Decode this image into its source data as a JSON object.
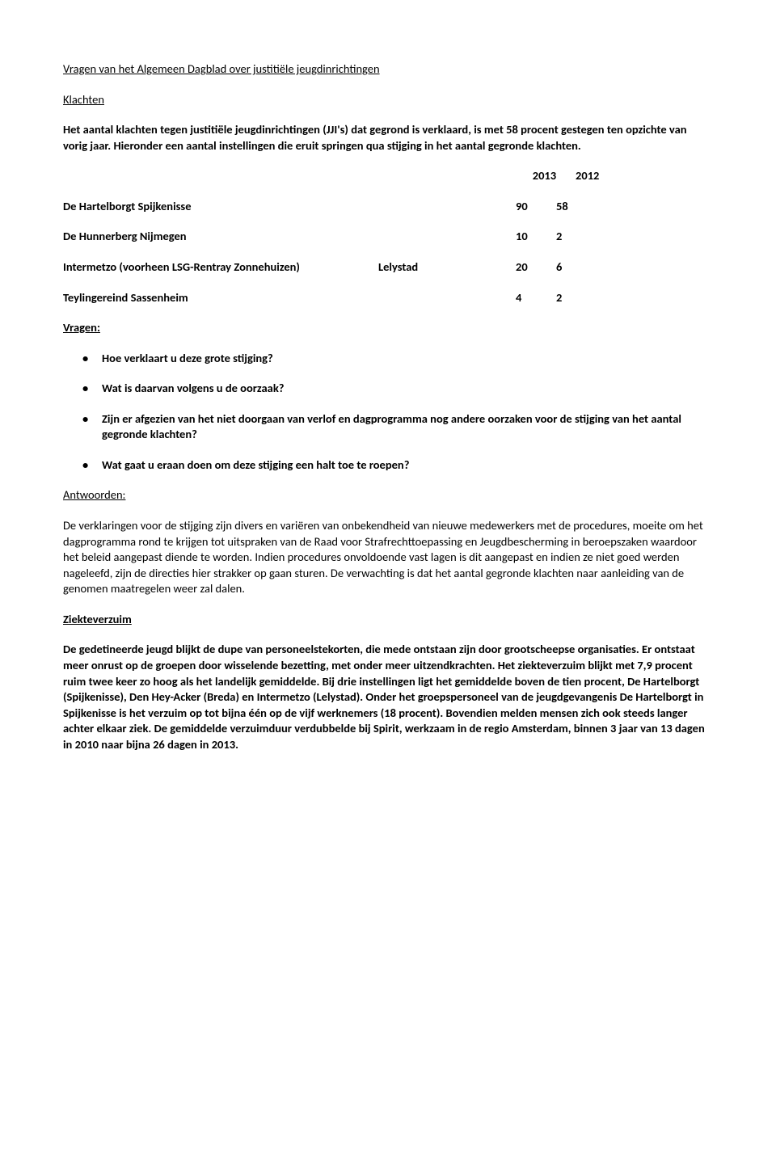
{
  "title": "Vragen van het Algemeen Dagblad over justitiële jeugdinrichtingen",
  "klachten": {
    "header": "Klachten",
    "intro": "Het aantal klachten tegen justitiële jeugdinrichtingen (JJI's)  dat gegrond is verklaard, is met 58 procent gestegen ten opzichte van vorig jaar. Hieronder een aantal instellingen die eruit springen qua stijging in het aantal gegronde klachten.",
    "years": [
      "2013",
      "2012"
    ],
    "rows": [
      {
        "label": "De Hartelborgt Spijkenisse",
        "mid": "",
        "v1": "90",
        "v2": "58"
      },
      {
        "label": "De Hunnerberg Nijmegen",
        "mid": "",
        "v1": "10",
        "v2": "2"
      },
      {
        "label": "Intermetzo (voorheen LSG-Rentray Zonnehuizen)",
        "mid": "Lelystad",
        "v1": "20",
        "v2": "6"
      },
      {
        "label": "Teylingereind   Sassenheim",
        "mid": "",
        "v1": "4",
        "v2": "2"
      }
    ],
    "vragen_label": " Vragen:",
    "vragen": [
      "Hoe verklaart u deze grote stijging?",
      "Wat is daarvan volgens u de oorzaak?",
      "Zijn er afgezien van het niet doorgaan van verlof en dagprogramma nog andere oorzaken voor de stijging van het aantal gegronde klachten?",
      "Wat gaat u eraan doen om deze stijging een halt toe te roepen?"
    ],
    "antwoorden_label": "Antwoorden:",
    "antwoorden": "De verklaringen voor de stijging zijn divers en variëren van onbekendheid van nieuwe medewerkers met de procedures, moeite om het dagprogramma rond te krijgen tot uitspraken van de Raad voor Strafrechttoepassing en Jeugdbescherming in beroepszaken waardoor het beleid aangepast diende te worden. Indien procedures onvoldoende vast lagen is dit aangepast en indien ze niet goed werden nageleefd, zijn de directies hier strakker op gaan sturen. De verwachting is dat het aantal gegronde klachten naar aanleiding van de genomen maatregelen weer zal dalen."
  },
  "ziekteverzuim": {
    "header": "Ziekteverzuim",
    "body": "De gedetineerde jeugd blijkt de dupe van personeelstekorten, die mede ontstaan zijn door grootscheepse organisaties. Er ontstaat meer onrust op de groepen door wisselende bezetting, met onder meer uitzendkrachten. Het ziekteverzuim blijkt met 7,9 procent ruim twee keer zo hoog als het landelijk gemiddelde. Bij drie instellingen ligt het gemiddelde boven de tien procent, De Hartelborgt (Spijkenisse), Den Hey-Acker (Breda) en Intermetzo (Lelystad). Onder het groepspersoneel van de jeugdgevangenis De Hartelborgt in Spijkenisse is het verzuim op tot bijna één op de vijf werknemers (18 procent). Bovendien melden mensen zich ook steeds langer achter elkaar ziek. De gemiddelde verzuimduur verdubbelde bij Spirit, werkzaam in de regio Amsterdam, binnen 3 jaar van 13 dagen in 2010 naar bijna 26 dagen in 2013."
  }
}
